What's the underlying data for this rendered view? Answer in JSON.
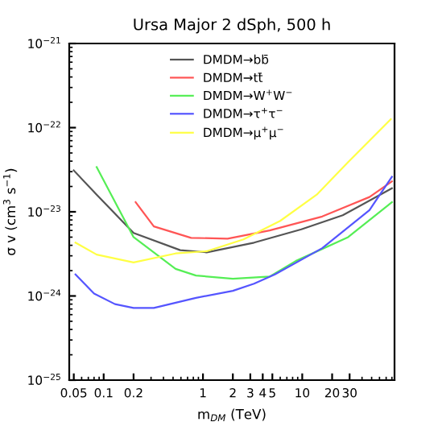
{
  "chart_data": {
    "type": "line",
    "title": "Ursa Major 2 dSph, 500 h",
    "xlabel": "m$_{DM}$ (TeV)",
    "ylabel": "σ v (cm$^{3}$ s$^{−1}$)",
    "log": "xy",
    "xlim": [
      0.045,
      85
    ],
    "ylim": [
      1e-25,
      1e-21
    ],
    "xticks": [
      0.05,
      0.1,
      0.2,
      1,
      2,
      3,
      4,
      5,
      10,
      20,
      30
    ],
    "yticks": [
      {
        "value": 1e-25,
        "label": "10$^{−25}$"
      },
      {
        "value": 1e-24,
        "label": "10$^{−24}$"
      },
      {
        "value": 1e-23,
        "label": "10$^{−23}$"
      },
      {
        "value": 1e-22,
        "label": "10$^{−22}$"
      },
      {
        "value": 1e-21,
        "label": "10$^{−21}$"
      }
    ],
    "legend": "top",
    "grid": false,
    "marker": "none",
    "line_style": "solid",
    "series": [
      {
        "name": "DMDM→bb̄",
        "color": "#555555",
        "x": [
          0.05,
          0.085,
          0.2,
          0.59,
          1.09,
          3.27,
          9.8,
          25.6,
          80
        ],
        "values": [
          3.1e-23,
          1.6e-23,
          5.6e-24,
          3.5e-24,
          3.3e-24,
          4.3e-24,
          6.2e-24,
          9.1e-24,
          1.9e-23
        ]
      },
      {
        "name": "DMDM→tt̄",
        "color": "#ff5555",
        "x": [
          0.21,
          0.32,
          0.76,
          1.77,
          4.7,
          15.9,
          47.6,
          80
        ],
        "values": [
          1.3e-23,
          6.7e-24,
          4.9e-24,
          4.8e-24,
          6e-24,
          8.8e-24,
          1.5e-23,
          2.3e-23
        ]
      },
      {
        "name": "DMDM→W$^{+}$W$^{−}$",
        "color": "#55ee55",
        "x": [
          0.085,
          0.2,
          0.53,
          0.85,
          2.0,
          4.7,
          8.6,
          29,
          80
        ],
        "values": [
          3.4e-23,
          5e-24,
          2.1e-24,
          1.75e-24,
          1.6e-24,
          1.7e-24,
          2.6e-24,
          5e-24,
          1.3e-23
        ]
      },
      {
        "name": "DMDM→τ$^{+}$τ$^{−}$",
        "color": "#5555ff",
        "x": [
          0.052,
          0.08,
          0.13,
          0.2,
          0.32,
          0.85,
          2.0,
          3.27,
          5.3,
          15.9,
          47.6,
          80
        ],
        "values": [
          1.8e-24,
          1.07e-24,
          8e-25,
          7.2e-25,
          7.2e-25,
          9.5e-25,
          1.15e-24,
          1.4e-24,
          1.8e-24,
          3.7e-24,
          1.05e-23,
          2.6e-23
        ]
      },
      {
        "name": "DMDM→μ$^{+}$μ$^{−}$",
        "color": "#ffff44",
        "x": [
          0.052,
          0.085,
          0.2,
          0.53,
          1.09,
          2.56,
          6,
          14,
          29,
          78
        ],
        "values": [
          4.3e-24,
          3.1e-24,
          2.5e-24,
          3.2e-24,
          3.4e-24,
          4.7e-24,
          7.8e-24,
          1.6e-23,
          3.9e-23,
          1.26e-22
        ]
      }
    ]
  }
}
